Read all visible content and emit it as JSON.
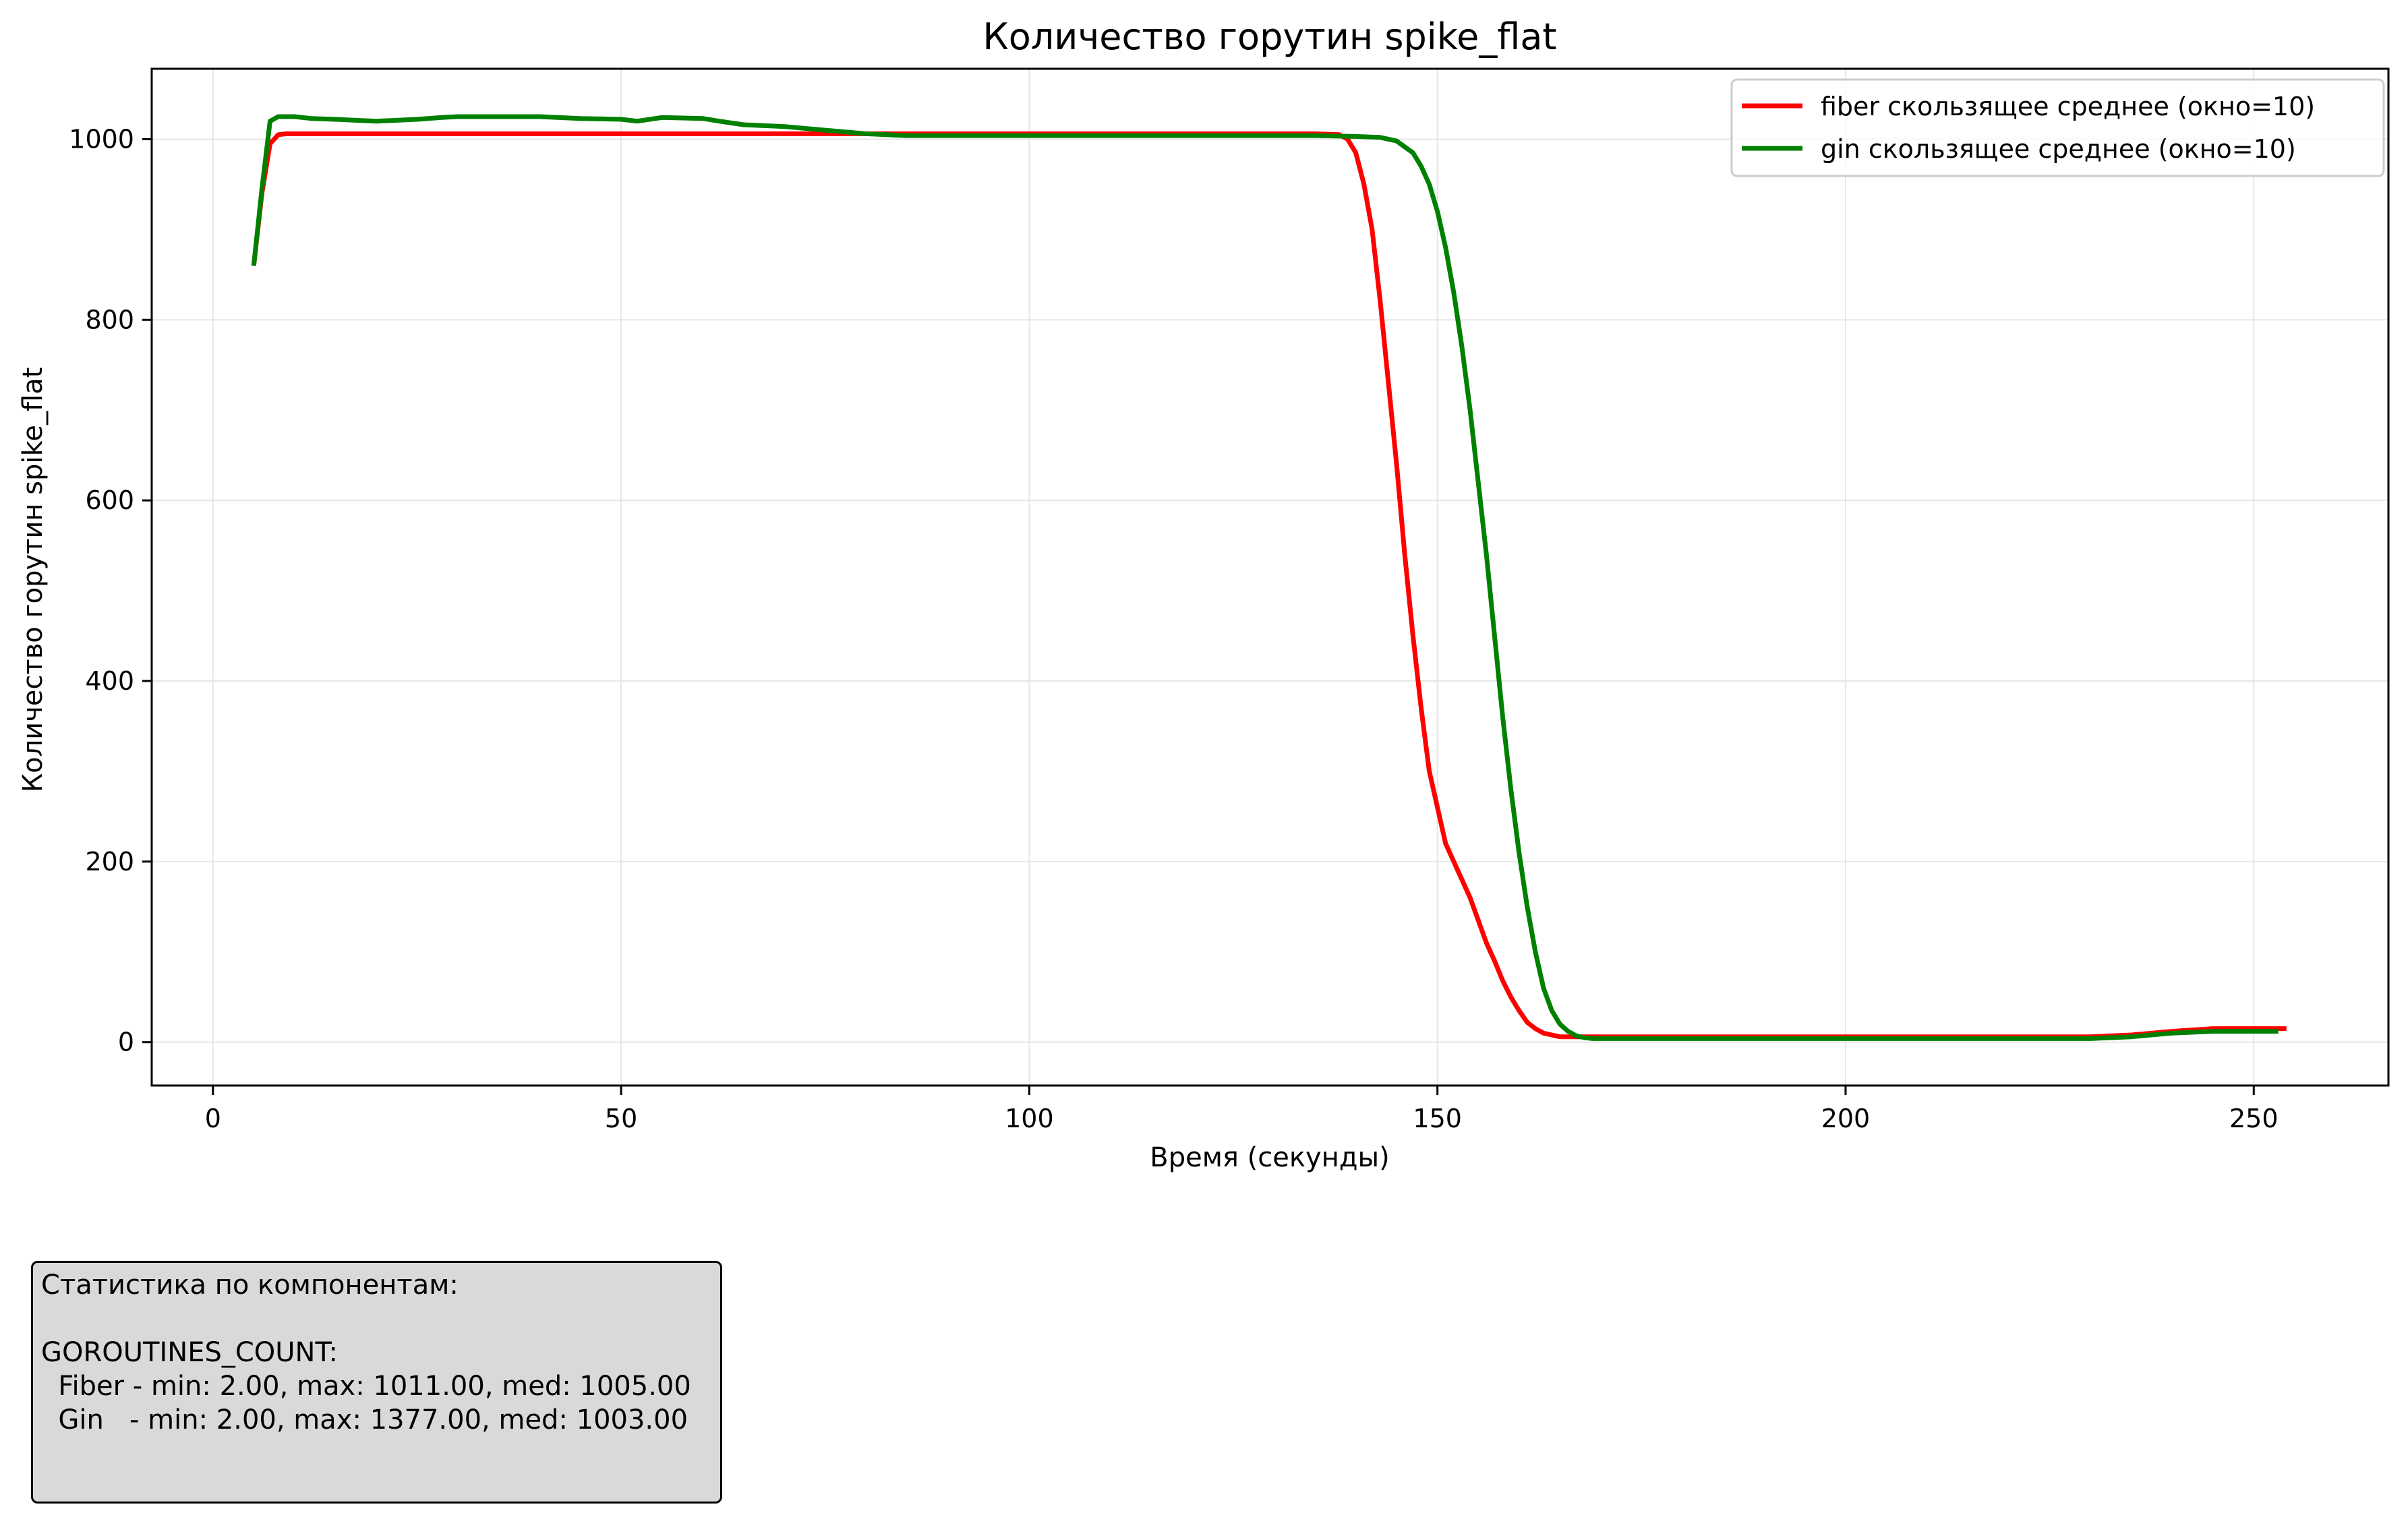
{
  "chart_data": {
    "type": "line",
    "title": "Количество горутин spike_flat",
    "xlabel": "Время (секунды)",
    "ylabel": "Количество горутин spike_flat",
    "xlim": [
      -7.5,
      266.5
    ],
    "ylim": [
      -48,
      1078
    ],
    "xticks": [
      0,
      50,
      100,
      150,
      200,
      250
    ],
    "yticks": [
      0,
      200,
      400,
      600,
      800,
      1000
    ],
    "grid": true,
    "legend_position": "top-right",
    "series": [
      {
        "name": "fiber скользящее среднее (окно=10)",
        "color": "#ff0000",
        "x": [
          5,
          6,
          7,
          8,
          9,
          10,
          20,
          40,
          60,
          80,
          100,
          120,
          135,
          138,
          139,
          140,
          141,
          142,
          143,
          144,
          145,
          146,
          147,
          148,
          149,
          150,
          151,
          152,
          153,
          154,
          155,
          156,
          157,
          158,
          159,
          160,
          161,
          162,
          163,
          165,
          170,
          180,
          200,
          220,
          230,
          235,
          240,
          245,
          250,
          254
        ],
        "y": [
          860,
          940,
          995,
          1005,
          1006,
          1006,
          1006,
          1006,
          1006,
          1006,
          1006,
          1006,
          1006,
          1005,
          1000,
          985,
          950,
          900,
          820,
          730,
          640,
          540,
          450,
          370,
          300,
          260,
          220,
          200,
          180,
          160,
          135,
          110,
          90,
          68,
          50,
          35,
          22,
          15,
          10,
          6,
          6,
          6,
          6,
          6,
          6,
          8,
          12,
          15,
          15,
          15
        ]
      },
      {
        "name": "gin скользящее среднее (окно=10)",
        "color": "#008000",
        "x": [
          5,
          6,
          7,
          8,
          10,
          12,
          15,
          20,
          25,
          28,
          30,
          35,
          40,
          45,
          50,
          52,
          55,
          60,
          62,
          65,
          70,
          75,
          80,
          85,
          90,
          100,
          120,
          135,
          140,
          143,
          145,
          147,
          148,
          149,
          150,
          151,
          152,
          153,
          154,
          155,
          156,
          157,
          158,
          159,
          160,
          161,
          162,
          163,
          164,
          165,
          166,
          167,
          168,
          169,
          170,
          175,
          180,
          200,
          220,
          230,
          235,
          240,
          245,
          250,
          253
        ],
        "y": [
          860,
          945,
          1020,
          1025,
          1025,
          1023,
          1022,
          1020,
          1022,
          1024,
          1025,
          1025,
          1025,
          1023,
          1022,
          1020,
          1024,
          1023,
          1020,
          1016,
          1014,
          1010,
          1006,
          1004,
          1004,
          1004,
          1004,
          1004,
          1003,
          1002,
          998,
          985,
          970,
          950,
          920,
          880,
          830,
          770,
          700,
          620,
          540,
          450,
          360,
          280,
          210,
          150,
          100,
          60,
          35,
          20,
          12,
          7,
          5,
          4,
          4,
          4,
          4,
          4,
          4,
          4,
          6,
          10,
          12,
          12,
          12
        ]
      }
    ]
  },
  "stats": {
    "lines": [
      "Статистика по компонентам:",
      "",
      "GOROUTINES_COUNT:",
      "  Fiber - min: 2.00, max: 1011.00, med: 1005.00",
      "  Gin   - min: 2.00, max: 1377.00, med: 1003.00"
    ]
  }
}
